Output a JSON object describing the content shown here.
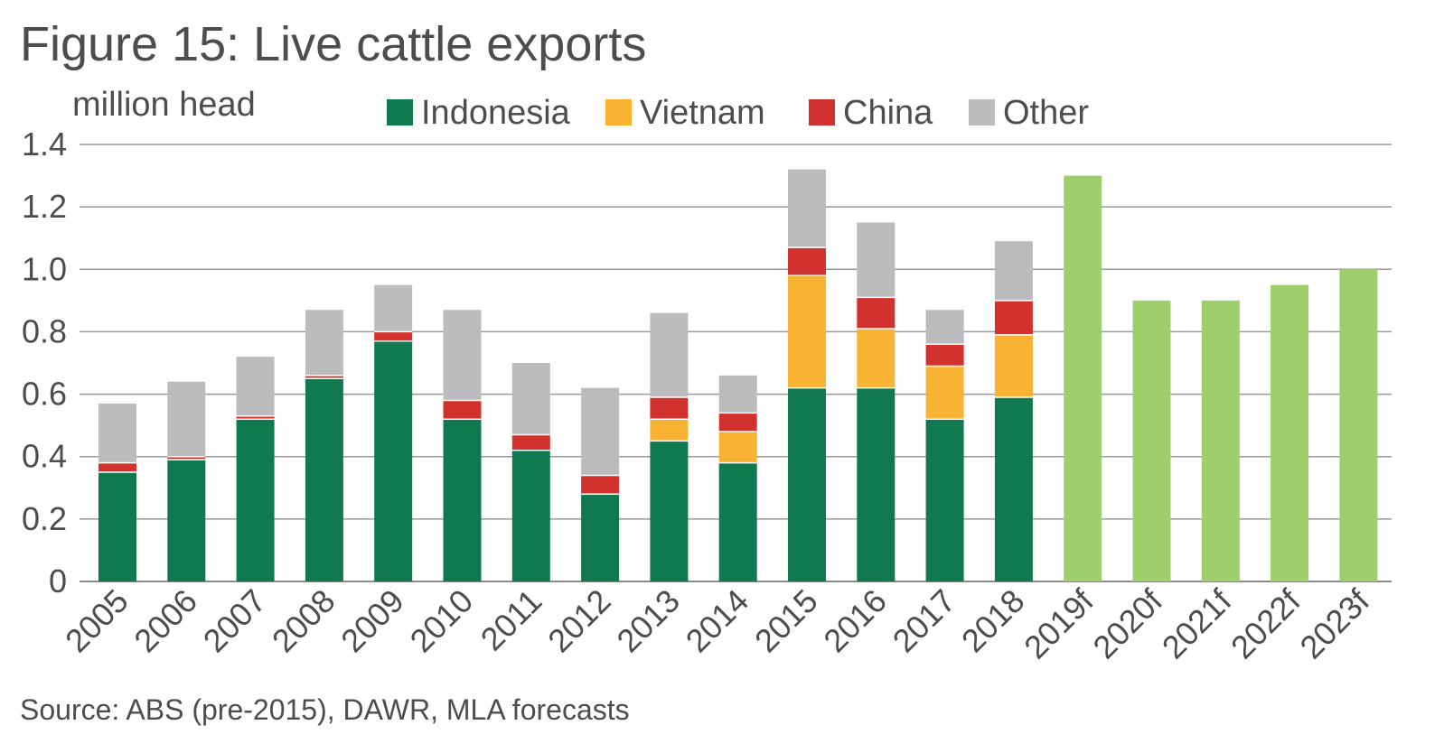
{
  "chart_data": {
    "type": "bar",
    "stacked": true,
    "title": "Figure 15: Live cattle exports",
    "ylabel": "million head",
    "xlabel": "",
    "ylim": [
      0,
      1.4
    ],
    "yticks": [
      "0",
      "0.2",
      "0.4",
      "0.6",
      "0.8",
      "1.0",
      "1.2",
      "1.4"
    ],
    "grid": true,
    "legend_position": "top",
    "categories": [
      "2005",
      "2006",
      "2007",
      "2008",
      "2009",
      "2010",
      "2011",
      "2012",
      "2013",
      "2014",
      "2015",
      "2016",
      "2017",
      "2018",
      "2019f",
      "2020f",
      "2021f",
      "2022f",
      "2023f"
    ],
    "series": [
      {
        "name": "Indonesia",
        "color": "#10794f",
        "values": [
          0.35,
          0.39,
          0.52,
          0.65,
          0.77,
          0.52,
          0.42,
          0.28,
          0.45,
          0.38,
          0.62,
          0.62,
          0.52,
          0.59,
          null,
          null,
          null,
          null,
          null
        ]
      },
      {
        "name": "Vietnam",
        "color": "#f8b332",
        "values": [
          0,
          0,
          0,
          0,
          0,
          0,
          0,
          0,
          0.07,
          0.1,
          0.36,
          0.19,
          0.17,
          0.2,
          null,
          null,
          null,
          null,
          null
        ]
      },
      {
        "name": "China",
        "color": "#d2322d",
        "values": [
          0.03,
          0.01,
          0.01,
          0.01,
          0.03,
          0.06,
          0.05,
          0.06,
          0.07,
          0.06,
          0.09,
          0.1,
          0.07,
          0.11,
          null,
          null,
          null,
          null,
          null
        ]
      },
      {
        "name": "Other",
        "color": "#bcbcbf",
        "values": [
          0.19,
          0.24,
          0.19,
          0.21,
          0.15,
          0.29,
          0.23,
          0.28,
          0.27,
          0.12,
          0.25,
          0.24,
          0.11,
          0.19,
          null,
          null,
          null,
          null,
          null
        ]
      }
    ],
    "forecast": {
      "color": "#9fce6d",
      "values": [
        null,
        null,
        null,
        null,
        null,
        null,
        null,
        null,
        null,
        null,
        null,
        null,
        null,
        null,
        1.3,
        0.9,
        0.9,
        0.95,
        1.0
      ]
    },
    "source": "Source: ABS (pre-2015), DAWR, MLA forecasts"
  }
}
